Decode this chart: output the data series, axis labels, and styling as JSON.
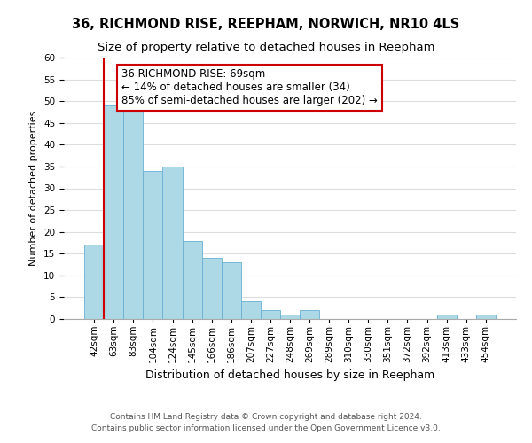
{
  "title": "36, RICHMOND RISE, REEPHAM, NORWICH, NR10 4LS",
  "subtitle": "Size of property relative to detached houses in Reepham",
  "xlabel": "Distribution of detached houses by size in Reepham",
  "ylabel": "Number of detached properties",
  "bar_labels": [
    "42sqm",
    "63sqm",
    "83sqm",
    "104sqm",
    "124sqm",
    "145sqm",
    "166sqm",
    "186sqm",
    "207sqm",
    "227sqm",
    "248sqm",
    "269sqm",
    "289sqm",
    "310sqm",
    "330sqm",
    "351sqm",
    "372sqm",
    "392sqm",
    "413sqm",
    "433sqm",
    "454sqm"
  ],
  "bar_values": [
    17,
    49,
    48,
    34,
    35,
    18,
    14,
    13,
    4,
    2,
    1,
    2,
    0,
    0,
    0,
    0,
    0,
    0,
    1,
    0,
    1
  ],
  "bar_color": "#add8e6",
  "bar_edge_color": "#6ab0d4",
  "property_line_index": 1,
  "property_line_color": "#cc0000",
  "annotation_title": "36 RICHMOND RISE: 69sqm",
  "annotation_line1": "← 14% of detached houses are smaller (34)",
  "annotation_line2": "85% of semi-detached houses are larger (202) →",
  "annotation_box_color": "#ffffff",
  "annotation_box_edge_color": "#cc0000",
  "ylim": [
    0,
    60
  ],
  "yticks": [
    0,
    5,
    10,
    15,
    20,
    25,
    30,
    35,
    40,
    45,
    50,
    55,
    60
  ],
  "footer1": "Contains HM Land Registry data © Crown copyright and database right 2024.",
  "footer2": "Contains public sector information licensed under the Open Government Licence v3.0.",
  "bg_color": "#ffffff",
  "grid_color": "#dddddd",
  "title_fontsize": 10.5,
  "subtitle_fontsize": 9.5,
  "xlabel_fontsize": 9,
  "ylabel_fontsize": 8,
  "tick_fontsize": 7.5,
  "annotation_fontsize": 8.5,
  "footer_fontsize": 6.5
}
